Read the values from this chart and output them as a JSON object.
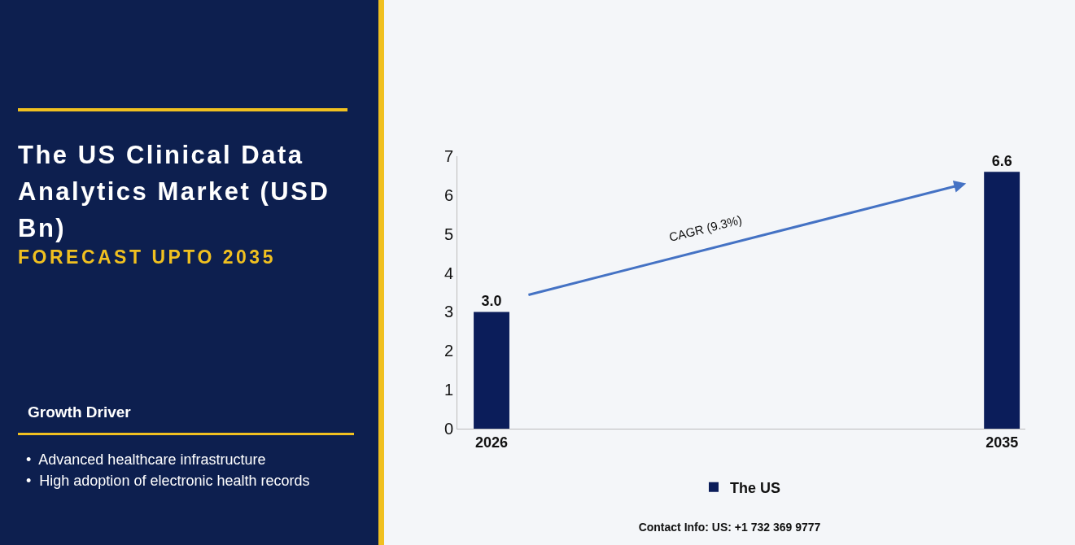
{
  "chart_data": {
    "type": "bar",
    "title": "The US Clinical Data Analytics Market (USD Bn)",
    "subtitle": "FORECAST UPTO 2035",
    "categories": [
      "2026",
      "2035"
    ],
    "series": [
      {
        "name": "The US",
        "color": "#0b1d5a",
        "values": [
          3.0,
          6.6
        ],
        "value_labels": [
          "3.0",
          "6.6"
        ]
      }
    ],
    "ylim": [
      0,
      7
    ],
    "yticks": [
      0,
      1,
      2,
      3,
      4,
      5,
      6,
      7
    ],
    "grid": false,
    "legend": "bottom",
    "annotations": [
      "CAGR (9.3%)",
      "Growth Driver",
      "•  Advanced healthcare infrastructure",
      "•  High adoption of electronic health records",
      "Contact Info: US: +1 732 369 9777"
    ]
  }
}
